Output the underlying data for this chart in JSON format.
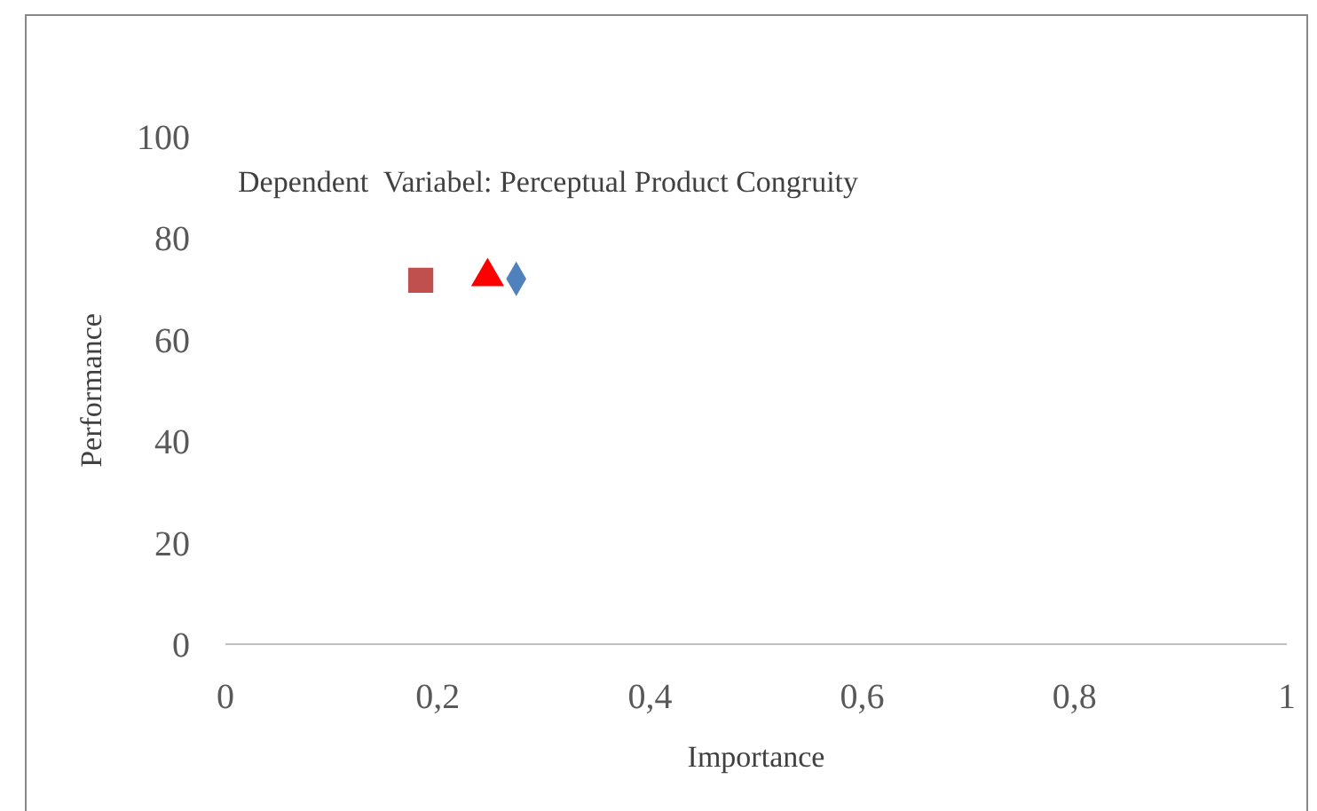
{
  "chart_data": {
    "type": "scatter",
    "xlabel": "Importance",
    "ylabel": "Performance",
    "annotations": [
      "Dependent  Variabel: Perceptual Product Congruity"
    ],
    "series": [
      {
        "color": "#c0504d",
        "marker": "square",
        "x": [
          0.184
        ],
        "values": [
          71.7
        ]
      },
      {
        "color": "#ff0000",
        "marker": "triangle",
        "x": [
          0.247
        ],
        "values": [
          72.4
        ]
      },
      {
        "color": "#4f81bd",
        "marker": "diamond",
        "x": [
          0.274
        ],
        "values": [
          72.0
        ]
      }
    ],
    "xlim": [
      0,
      1
    ],
    "xticks": [
      0,
      {
        "value": 0.2,
        "label": "0,2"
      },
      {
        "value": 0.4,
        "label": "0,4"
      },
      {
        "value": 0.6,
        "label": "0,6"
      },
      {
        "value": 0.8,
        "label": "0,8"
      },
      1
    ],
    "ylim": [
      0,
      100
    ],
    "yticks": [
      0,
      20,
      40,
      60,
      80,
      100
    ]
  }
}
